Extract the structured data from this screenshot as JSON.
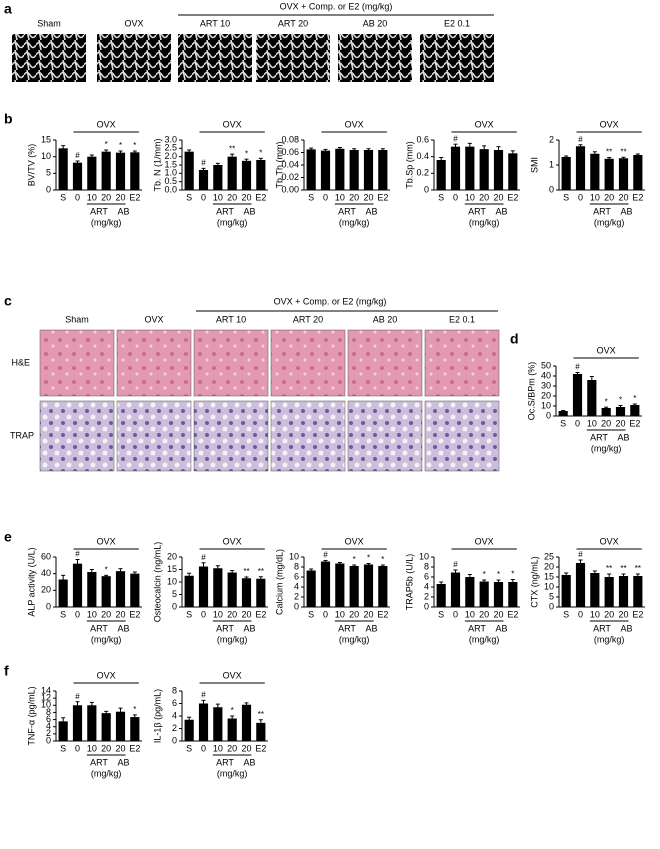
{
  "figure": {
    "panel_labels": [
      "a",
      "b",
      "c",
      "d",
      "e",
      "f"
    ],
    "panel_a": {
      "group_title": "OVX + Comp. or E2 (mg/kg)",
      "image_labels": [
        "Sham",
        "OVX",
        "ART 10",
        "ART 20",
        "AB 20",
        "E2 0.1"
      ]
    },
    "panel_c": {
      "group_title": "OVX + Comp. or E2 (mg/kg)",
      "image_labels": [
        "Sham",
        "OVX",
        "ART 10",
        "ART 20",
        "AB 20",
        "E2 0.1"
      ],
      "row_labels": [
        "H&E",
        "TRAP"
      ]
    }
  },
  "chart_data": [
    {
      "type": "bar",
      "ylabel": "BV/TV (%)",
      "bracket_label": "OVX",
      "group_labels": [
        "ART",
        "AB"
      ],
      "unit_label": "(mg/kg)",
      "categories": [
        "S",
        "0",
        "10",
        "20",
        "20",
        "E2"
      ],
      "values": [
        12.5,
        8.2,
        10,
        11.5,
        11.2,
        11.3
      ],
      "errors": [
        0.8,
        0.5,
        0.5,
        0.5,
        0.5,
        0.4
      ],
      "sig": [
        null,
        "#",
        null,
        "*",
        "*",
        "*"
      ],
      "ylim": [
        0,
        15
      ],
      "yticks": [
        0,
        5,
        10,
        15
      ],
      "color": "#000000"
    },
    {
      "type": "bar",
      "ylabel": "Tb. N (1/mm)",
      "bracket_label": "OVX",
      "group_labels": [
        "ART",
        "AB"
      ],
      "unit_label": "(mg/kg)",
      "categories": [
        "S",
        "0",
        "10",
        "20",
        "20",
        "E2"
      ],
      "values": [
        2.3,
        1.2,
        1.5,
        2.0,
        1.75,
        1.8
      ],
      "errors": [
        0.1,
        0.1,
        0.1,
        0.15,
        0.1,
        0.1
      ],
      "sig": [
        null,
        "#",
        null,
        "**",
        "*",
        "*"
      ],
      "ylim": [
        0,
        3
      ],
      "yticks": [
        {
          "value": 0,
          "label": "0.0"
        },
        0.5,
        {
          "value": 1,
          "label": "1.0"
        },
        1.5,
        {
          "value": 2,
          "label": "2.0"
        },
        2.5,
        {
          "value": 3,
          "label": "3.0"
        }
      ],
      "color": "#000000"
    },
    {
      "type": "bar",
      "ylabel": "Tb.Th (mm)",
      "bracket_label": "OVX",
      "group_labels": [
        "ART",
        "AB"
      ],
      "unit_label": "(mg/kg)",
      "categories": [
        "S",
        "0",
        "10",
        "20",
        "20",
        "E2"
      ],
      "values": [
        0.065,
        0.063,
        0.066,
        0.064,
        0.064,
        0.064
      ],
      "errors": [
        0.002,
        0.002,
        0.002,
        0.002,
        0.002,
        0.002
      ],
      "sig": [
        null,
        null,
        null,
        null,
        null,
        null
      ],
      "ylim": [
        0,
        0.08
      ],
      "yticks": [
        {
          "value": 0,
          "label": "0.00"
        },
        0.02,
        0.04,
        0.06,
        0.08
      ],
      "color": "#000000"
    },
    {
      "type": "bar",
      "ylabel": "Tb.Sp (mm)",
      "bracket_label": "OVX",
      "group_labels": [
        "ART",
        "AB"
      ],
      "unit_label": "(mg/kg)",
      "categories": [
        "S",
        "0",
        "10",
        "20",
        "20",
        "E2"
      ],
      "values": [
        0.36,
        0.52,
        0.52,
        0.49,
        0.48,
        0.44
      ],
      "errors": [
        0.03,
        0.03,
        0.04,
        0.04,
        0.04,
        0.03
      ],
      "sig": [
        null,
        "#",
        null,
        null,
        null,
        null
      ],
      "ylim": [
        0,
        0.6
      ],
      "yticks": [
        0,
        0.2,
        0.4,
        0.6
      ],
      "color": "#000000"
    },
    {
      "type": "bar",
      "ylabel": "SMI",
      "bracket_label": "OVX",
      "group_labels": [
        "ART",
        "AB"
      ],
      "unit_label": "(mg/kg)",
      "categories": [
        "S",
        "0",
        "10",
        "20",
        "20",
        "E2"
      ],
      "values": [
        1.32,
        1.75,
        1.45,
        1.25,
        1.27,
        1.4
      ],
      "errors": [
        0.04,
        0.06,
        0.08,
        0.05,
        0.04,
        0.04
      ],
      "sig": [
        null,
        "#",
        null,
        "**",
        "**",
        null
      ],
      "ylim": [
        0,
        2
      ],
      "yticks": [
        0,
        1,
        2
      ],
      "color": "#000000"
    },
    {
      "type": "bar",
      "ylabel": "Oc.S/BPm (%)",
      "bracket_label": "OVX",
      "group_labels": [
        "ART",
        "AB"
      ],
      "unit_label": "(mg/kg)",
      "categories": [
        "S",
        "0",
        "10",
        "20",
        "20",
        "E2"
      ],
      "values": [
        5,
        42,
        36,
        8,
        9,
        11
      ],
      "errors": [
        0.5,
        1.5,
        3.5,
        0.8,
        1.5,
        1
      ],
      "sig": [
        null,
        "#",
        null,
        "*",
        "*",
        "*"
      ],
      "ylim": [
        0,
        50
      ],
      "yticks": [
        0,
        10,
        20,
        30,
        40,
        50
      ],
      "color": "#000000"
    },
    {
      "type": "bar",
      "ylabel": "ALP activity (U/L)",
      "bracket_label": "OVX",
      "group_labels": [
        "ART",
        "AB"
      ],
      "unit_label": "(mg/kg)",
      "categories": [
        "S",
        "0",
        "10",
        "20",
        "20",
        "E2"
      ],
      "values": [
        33,
        52,
        42,
        37,
        43,
        40
      ],
      "errors": [
        5,
        5,
        3,
        1,
        3,
        2
      ],
      "sig": [
        null,
        "#",
        null,
        "*",
        null,
        null
      ],
      "ylim": [
        0,
        60
      ],
      "yticks": [
        0,
        20,
        40,
        60
      ],
      "color": "#000000"
    },
    {
      "type": "bar",
      "ylabel": "Osteocalcin (ng/mL)",
      "bracket_label": "OVX",
      "group_labels": [
        "ART",
        "AB"
      ],
      "unit_label": "(mg/kg)",
      "categories": [
        "S",
        "0",
        "10",
        "20",
        "20",
        "E2"
      ],
      "values": [
        12.5,
        16.2,
        15.5,
        13.8,
        11.5,
        11.3
      ],
      "errors": [
        1,
        1.5,
        1,
        0.8,
        0.5,
        0.8
      ],
      "sig": [
        null,
        "#",
        null,
        null,
        "**",
        "**"
      ],
      "ylim": [
        0,
        20
      ],
      "yticks": [
        0,
        5,
        10,
        15,
        20
      ],
      "color": "#000000"
    },
    {
      "type": "bar",
      "ylabel": "Calcium (mg/dL)",
      "bracket_label": "OVX",
      "group_labels": [
        "ART",
        "AB"
      ],
      "unit_label": "(mg/kg)",
      "categories": [
        "S",
        "0",
        "10",
        "20",
        "20",
        "E2"
      ],
      "values": [
        7.3,
        9.1,
        8.7,
        8.2,
        8.5,
        8.2
      ],
      "errors": [
        0.3,
        0.2,
        0.2,
        0.2,
        0.2,
        0.2
      ],
      "sig": [
        null,
        "#",
        null,
        "*",
        "*",
        "*"
      ],
      "ylim": [
        0,
        10
      ],
      "yticks": [
        0,
        2,
        4,
        6,
        8,
        10
      ],
      "color": "#000000"
    },
    {
      "type": "bar",
      "ylabel": "TRAP5b (U/L)",
      "bracket_label": "OVX",
      "group_labels": [
        "ART",
        "AB"
      ],
      "unit_label": "(mg/kg)",
      "categories": [
        "S",
        "0",
        "10",
        "20",
        "20",
        "E2"
      ],
      "values": [
        4.6,
        6.9,
        6.0,
        5.1,
        5.0,
        5.0
      ],
      "errors": [
        0.4,
        0.5,
        0.5,
        0.3,
        0.4,
        0.5
      ],
      "sig": [
        null,
        "#",
        null,
        "*",
        "*",
        "*"
      ],
      "ylim": [
        0,
        10
      ],
      "yticks": [
        0,
        2,
        4,
        6,
        8,
        10
      ],
      "color": "#000000"
    },
    {
      "type": "bar",
      "ylabel": "CTX (ng/mL)",
      "bracket_label": "OVX",
      "group_labels": [
        "ART",
        "AB"
      ],
      "unit_label": "(mg/kg)",
      "categories": [
        "S",
        "0",
        "10",
        "20",
        "20",
        "E2"
      ],
      "values": [
        16,
        22,
        17,
        15,
        15.5,
        15.5
      ],
      "errors": [
        1,
        1.5,
        1,
        1.5,
        1,
        1
      ],
      "sig": [
        null,
        "#",
        null,
        "**",
        "**",
        "**"
      ],
      "ylim": [
        0,
        25
      ],
      "yticks": [
        0,
        5,
        10,
        15,
        20,
        25
      ],
      "color": "#000000"
    },
    {
      "type": "bar",
      "ylabel": "TNF-α (pg/mL)",
      "bracket_label": "OVX",
      "group_labels": [
        "ART",
        "AB"
      ],
      "unit_label": "(mg/kg)",
      "categories": [
        "S",
        "0",
        "10",
        "20",
        "20",
        "E2"
      ],
      "values": [
        5.5,
        10,
        10,
        7.8,
        8.2,
        6.7
      ],
      "errors": [
        1,
        1,
        0.8,
        0.5,
        1,
        0.6
      ],
      "sig": [
        null,
        "#",
        null,
        null,
        null,
        "*"
      ],
      "ylim": [
        0,
        14
      ],
      "yticks": [
        0,
        2,
        4,
        6,
        8,
        10,
        12,
        14
      ],
      "color": "#000000"
    },
    {
      "type": "bar",
      "ylabel": "IL-1β (pg/mL)",
      "bracket_label": "OVX",
      "group_labels": [
        "ART",
        "AB"
      ],
      "unit_label": "(mg/kg)",
      "categories": [
        "S",
        "0",
        "10",
        "20",
        "20",
        "E2"
      ],
      "values": [
        3.4,
        6,
        5.4,
        3.6,
        5.8,
        2.9
      ],
      "errors": [
        0.4,
        0.5,
        0.5,
        0.4,
        0.3,
        0.5
      ],
      "sig": [
        null,
        "#",
        null,
        "*",
        null,
        "**"
      ],
      "ylim": [
        0,
        8
      ],
      "yticks": [
        0,
        2,
        4,
        6,
        8
      ],
      "color": "#000000"
    }
  ]
}
